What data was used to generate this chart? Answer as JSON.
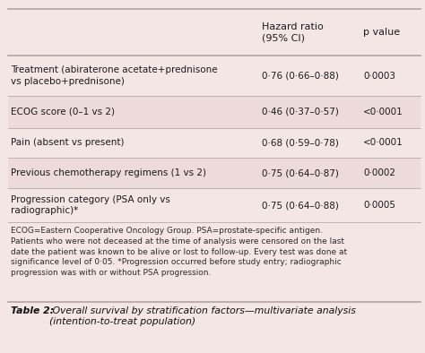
{
  "bg_color": "#f5e6e6",
  "rows": [
    [
      "Treatment (abiraterone acetate+prednisone\nvs placebo+prednisone)",
      "0·76 (0·66–0·88)",
      "0·0003"
    ],
    [
      "ECOG score (0–1 vs 2)",
      "0·46 (0·37–0·57)",
      "<0·0001"
    ],
    [
      "Pain (absent vs present)",
      "0·68 (0·59–0·78)",
      "<0·0001"
    ],
    [
      "Previous chemotherapy regimens (1 vs 2)",
      "0·75 (0·64–0·87)",
      "0·0002"
    ],
    [
      "Progression category (PSA only vs\nradiographic)*",
      "0·75 (0·64–0·88)",
      "0·0005"
    ]
  ],
  "shaded_rows": [
    1,
    3
  ],
  "footnote": "ECOG=Eastern Cooperative Oncology Group. PSA=prostate-specific antigen.\nPatients who were not deceased at the time of analysis were censored on the last\ndate the patient was known to be alive or lost to follow-up. Every test was done at\nsignificance level of 0·05. *Progression occurred before study entry; radiographic\nprogression was with or without PSA progression.",
  "caption_bold": "Table 2:",
  "caption_rest": " Overall survival by stratification factors—multivariate analysis\n(intention-to-treat population)",
  "shaded_row_color": "#eddada",
  "line_color": "#b8a8a8",
  "text_color": "#1a1a1a",
  "caption_color": "#111111",
  "footnote_color": "#2a2a2a",
  "header_fs": 8.0,
  "body_fs": 7.5,
  "footnote_fs": 6.5,
  "caption_fs": 7.8
}
